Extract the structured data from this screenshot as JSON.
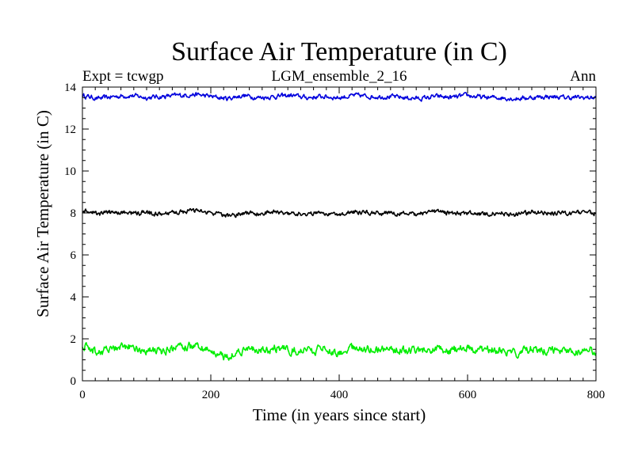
{
  "chart_data": {
    "type": "line",
    "title": "Surface Air Temperature (in C)",
    "subtitle_left": "Expt = tcwgp",
    "subtitle_center": "LGM_ensemble_2_16",
    "subtitle_right": "Ann",
    "xlabel": "Time (in years since start)",
    "ylabel": "Surface Air Temperature (in C)",
    "xlim": [
      0,
      800
    ],
    "ylim": [
      0,
      14
    ],
    "xticks": [
      0,
      200,
      400,
      600,
      800
    ],
    "xtick_labels": [
      "0",
      "200",
      "400",
      "600",
      "800"
    ],
    "yticks": [
      0,
      2,
      4,
      6,
      8,
      10,
      12,
      14
    ],
    "ytick_labels": [
      "0",
      "2",
      "4",
      "6",
      "8",
      "10",
      "12",
      "14"
    ],
    "grid": false,
    "series": [
      {
        "name": "upper series",
        "color": "#0000dd",
        "x": [
          0,
          25,
          50,
          75,
          100,
          125,
          150,
          175,
          200,
          225,
          250,
          275,
          300,
          325,
          350,
          375,
          400,
          425,
          450,
          475,
          500,
          525,
          550,
          575,
          600,
          625,
          650,
          675,
          700,
          725,
          750,
          775,
          800
        ],
        "values": [
          13.6,
          13.45,
          13.55,
          13.6,
          13.5,
          13.55,
          13.6,
          13.65,
          13.55,
          13.45,
          13.6,
          13.5,
          13.55,
          13.6,
          13.5,
          13.55,
          13.5,
          13.6,
          13.55,
          13.55,
          13.5,
          13.45,
          13.55,
          13.5,
          13.6,
          13.5,
          13.5,
          13.45,
          13.5,
          13.55,
          13.5,
          13.5,
          13.5
        ]
      },
      {
        "name": "middle series",
        "color": "#000000",
        "x": [
          0,
          25,
          50,
          75,
          100,
          125,
          150,
          175,
          200,
          225,
          250,
          275,
          300,
          325,
          350,
          375,
          400,
          425,
          450,
          475,
          500,
          525,
          550,
          575,
          600,
          625,
          650,
          675,
          700,
          725,
          750,
          775,
          800
        ],
        "values": [
          8.1,
          7.95,
          8.05,
          8.0,
          8.0,
          7.9,
          8.05,
          8.1,
          8.0,
          7.85,
          8.0,
          7.95,
          8.05,
          8.0,
          7.95,
          8.0,
          7.95,
          8.05,
          8.0,
          8.0,
          7.95,
          7.95,
          8.05,
          8.0,
          8.0,
          7.95,
          8.0,
          7.9,
          8.05,
          8.0,
          8.0,
          8.0,
          8.0
        ]
      },
      {
        "name": "lower series",
        "color": "#00ee00",
        "x": [
          0,
          25,
          50,
          75,
          100,
          125,
          150,
          175,
          200,
          225,
          250,
          275,
          300,
          325,
          350,
          375,
          400,
          425,
          450,
          475,
          500,
          525,
          550,
          575,
          600,
          625,
          650,
          675,
          700,
          725,
          750,
          775,
          800
        ],
        "values": [
          1.7,
          1.35,
          1.55,
          1.6,
          1.45,
          1.4,
          1.6,
          1.65,
          1.4,
          1.15,
          1.5,
          1.4,
          1.55,
          1.45,
          1.4,
          1.5,
          1.35,
          1.55,
          1.5,
          1.55,
          1.45,
          1.4,
          1.5,
          1.45,
          1.55,
          1.45,
          1.5,
          1.3,
          1.55,
          1.45,
          1.5,
          1.45,
          1.45
        ]
      }
    ]
  }
}
